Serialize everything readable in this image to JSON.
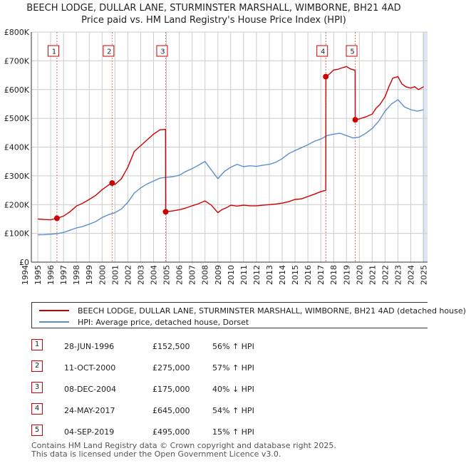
{
  "title": {
    "line1": "BEECH LODGE, DULLAR LANE, STURMINSTER MARSHALL, WIMBORNE, BH21 4AD",
    "line2": "Price paid vs. HM Land Registry's House Price Index (HPI)"
  },
  "colors": {
    "property": "#cc0000",
    "hpi": "#5b8fcc",
    "grid": "#cccccc",
    "marker_line": "#e06666",
    "shade": "#dde6f3"
  },
  "chart_data": {
    "type": "line",
    "title": "Price paid vs. HM Land Registry's House Price Index (HPI)",
    "xlabel": "",
    "ylabel": "",
    "xlim": [
      1994.5,
      2025.3
    ],
    "ylim": [
      0,
      800000
    ],
    "y_ticks": [
      0,
      100000,
      200000,
      300000,
      400000,
      500000,
      600000,
      700000,
      800000
    ],
    "y_tick_labels": [
      "£0",
      "£100K",
      "£200K",
      "£300K",
      "£400K",
      "£500K",
      "£600K",
      "£700K",
      "£800K"
    ],
    "x_ticks": [
      1994,
      1995,
      1996,
      1997,
      1998,
      1999,
      2000,
      2001,
      2002,
      2003,
      2004,
      2005,
      2006,
      2007,
      2008,
      2009,
      2010,
      2011,
      2012,
      2013,
      2014,
      2015,
      2016,
      2017,
      2018,
      2019,
      2020,
      2021,
      2022,
      2023,
      2024,
      2025
    ],
    "x_tick_labels": [
      "1994",
      "1995",
      "1996",
      "1997",
      "1998",
      "1999",
      "2000",
      "2001",
      "2002",
      "2003",
      "2004",
      "2005",
      "2006",
      "2007",
      "2008",
      "2009",
      "2010",
      "2011",
      "2012",
      "2013",
      "2014",
      "2015",
      "2016",
      "2017",
      "2018",
      "2019",
      "2020",
      "2021",
      "2022",
      "2023",
      "2024",
      "2025"
    ],
    "grid": true,
    "legend_position": "below",
    "series": [
      {
        "name": "BEECH LODGE, DULLAR LANE, STURMINSTER MARSHALL, WIMBORNE, BH21 4AD (detached house)",
        "color": "#cc0000",
        "x": [
          1995.0,
          1995.5,
          1996.0,
          1996.49,
          1997.0,
          1997.5,
          1998.0,
          1998.5,
          1999.0,
          1999.5,
          2000.0,
          2000.5,
          2000.78,
          2001.0,
          2001.5,
          2002.0,
          2002.5,
          2003.0,
          2003.5,
          2004.0,
          2004.5,
          2004.93,
          2004.94,
          2005.5,
          2006.0,
          2006.5,
          2007.0,
          2007.5,
          2008.0,
          2008.5,
          2009.0,
          2009.3,
          2009.7,
          2010.0,
          2010.5,
          2011.0,
          2011.5,
          2012.0,
          2012.5,
          2013.0,
          2013.5,
          2014.0,
          2014.5,
          2015.0,
          2015.5,
          2016.0,
          2016.5,
          2017.0,
          2017.39,
          2017.4,
          2017.7,
          2018.0,
          2018.3,
          2018.6,
          2019.0,
          2019.3,
          2019.6,
          2019.67,
          2019.68,
          2020.0,
          2020.5,
          2021.0,
          2021.3,
          2021.6,
          2022.0,
          2022.3,
          2022.6,
          2023.0,
          2023.3,
          2023.6,
          2024.0,
          2024.3,
          2024.6,
          2025.0
        ],
        "values": [
          150000,
          148000,
          147000,
          152500,
          160000,
          175000,
          195000,
          205000,
          218000,
          232000,
          252000,
          268000,
          275000,
          270000,
          290000,
          330000,
          385000,
          405000,
          425000,
          445000,
          460000,
          462000,
          175000,
          178000,
          182000,
          188000,
          196000,
          203000,
          213000,
          198000,
          172000,
          182000,
          190000,
          198000,
          195000,
          198000,
          196000,
          196000,
          198000,
          200000,
          202000,
          205000,
          210000,
          218000,
          220000,
          228000,
          236000,
          245000,
          250000,
          645000,
          655000,
          668000,
          670000,
          675000,
          680000,
          672000,
          668000,
          665000,
          495000,
          498000,
          505000,
          515000,
          535000,
          548000,
          575000,
          610000,
          640000,
          645000,
          620000,
          610000,
          605000,
          610000,
          600000,
          610000
        ]
      },
      {
        "name": "HPI: Average price, detached house, Dorset",
        "color": "#5b8fcc",
        "x": [
          1995.0,
          1995.5,
          1996.0,
          1996.5,
          1997.0,
          1997.5,
          1998.0,
          1998.5,
          1999.0,
          1999.5,
          2000.0,
          2000.5,
          2001.0,
          2001.5,
          2002.0,
          2002.5,
          2003.0,
          2003.5,
          2004.0,
          2004.5,
          2005.0,
          2005.5,
          2006.0,
          2006.5,
          2007.0,
          2007.5,
          2008.0,
          2008.5,
          2009.0,
          2009.5,
          2010.0,
          2010.5,
          2011.0,
          2011.5,
          2012.0,
          2012.5,
          2013.0,
          2013.5,
          2014.0,
          2014.5,
          2015.0,
          2015.5,
          2016.0,
          2016.5,
          2017.0,
          2017.5,
          2018.0,
          2018.5,
          2019.0,
          2019.5,
          2020.0,
          2020.5,
          2021.0,
          2021.5,
          2022.0,
          2022.5,
          2023.0,
          2023.5,
          2024.0,
          2024.5,
          2025.0
        ],
        "values": [
          95000,
          95500,
          97000,
          99000,
          103000,
          111000,
          119000,
          124000,
          132000,
          141000,
          155000,
          165000,
          172000,
          185000,
          208000,
          240000,
          258000,
          272000,
          282000,
          292000,
          295000,
          297000,
          302000,
          315000,
          325000,
          337000,
          350000,
          320000,
          290000,
          315000,
          330000,
          340000,
          332000,
          335000,
          333000,
          337000,
          340000,
          347000,
          360000,
          377000,
          388000,
          398000,
          408000,
          420000,
          428000,
          440000,
          445000,
          448000,
          440000,
          432000,
          435000,
          448000,
          465000,
          490000,
          525000,
          550000,
          565000,
          540000,
          530000,
          525000,
          530000
        ]
      }
    ],
    "sales": [
      {
        "n": "1",
        "x": 1996.49,
        "value": 152500
      },
      {
        "n": "2",
        "x": 2000.78,
        "value": 275000
      },
      {
        "n": "3",
        "x": 2004.94,
        "value": 175000
      },
      {
        "n": "4",
        "x": 2017.39,
        "value": 645000
      },
      {
        "n": "5",
        "x": 2019.68,
        "value": 495000
      }
    ]
  },
  "legend": {
    "property_label": "BEECH LODGE, DULLAR LANE, STURMINSTER MARSHALL, WIMBORNE, BH21 4AD (detached house)",
    "hpi_label": "HPI: Average price, detached house, Dorset"
  },
  "sales_table": [
    {
      "n": "1",
      "date": "28-JUN-1996",
      "price": "£152,500",
      "hpi": "56% ↑ HPI"
    },
    {
      "n": "2",
      "date": "11-OCT-2000",
      "price": "£275,000",
      "hpi": "57% ↑ HPI"
    },
    {
      "n": "3",
      "date": "08-DEC-2004",
      "price": "£175,000",
      "hpi": "40% ↓ HPI"
    },
    {
      "n": "4",
      "date": "24-MAY-2017",
      "price": "£645,000",
      "hpi": "54% ↑ HPI"
    },
    {
      "n": "5",
      "date": "04-SEP-2019",
      "price": "£495,000",
      "hpi": "15% ↑ HPI"
    }
  ],
  "footer": {
    "line1": "Contains HM Land Registry data © Crown copyright and database right 2025.",
    "line2": "This data is licensed under the Open Government Licence v3.0."
  }
}
